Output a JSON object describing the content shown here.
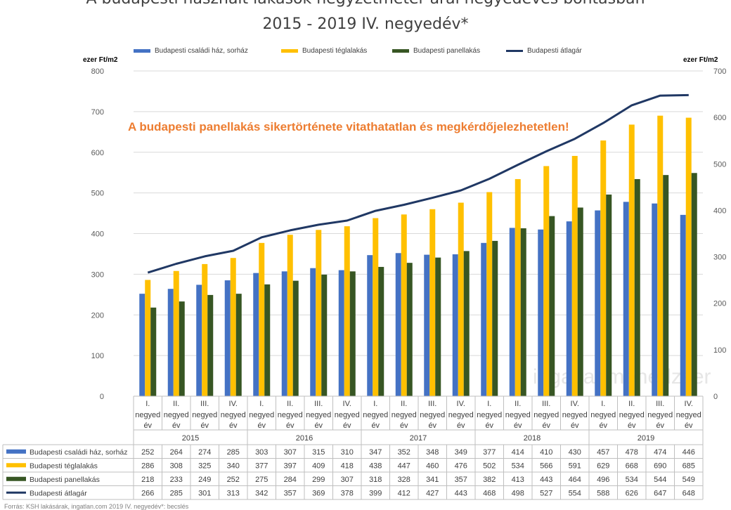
{
  "chart_data": {
    "type": "bar",
    "title_line1": "A budapesti használt lakások négyzetméter árai negyedéves bontásban",
    "title_line2": "2015 - 2019 IV. negyedév*",
    "ylabel_left": "ezer Ft/m2",
    "ylabel_right": "ezer Ft/m2",
    "ylim_left": [
      0,
      800
    ],
    "ylim_right": [
      0,
      700
    ],
    "yticks_left": [
      "0",
      "100",
      "200",
      "300",
      "400",
      "500",
      "600",
      "700",
      "800"
    ],
    "yticks_right": [
      "0",
      "100",
      "200",
      "300",
      "400",
      "500",
      "600",
      "700"
    ],
    "grid": true,
    "legend_position": "top",
    "annotation": "A budapesti panellakás sikertörténete vitathatatlan és megkérdőjelezhetetlen!",
    "watermark": "ingatlanmenedzser",
    "footnote": "Forrás: KSH lakásárak, ingatlan.com 2019 IV. negyedév*: becslés",
    "quarter_labels": [
      "I.",
      "II.",
      "III.",
      "IV."
    ],
    "negyed": "negyed",
    "ev": "év",
    "years": [
      "2015",
      "2016",
      "2017",
      "2018",
      "2019"
    ],
    "series": [
      {
        "name": "Budapesti családi ház, sorház",
        "color": "#4472c4",
        "kind": "bar",
        "axis": "left",
        "values": [
          252,
          264,
          274,
          285,
          303,
          307,
          315,
          310,
          347,
          352,
          348,
          349,
          377,
          414,
          410,
          430,
          457,
          478,
          474,
          446
        ]
      },
      {
        "name": "Budapesti téglalakás",
        "color": "#ffc000",
        "kind": "bar",
        "axis": "left",
        "values": [
          286,
          308,
          325,
          340,
          377,
          397,
          409,
          418,
          438,
          447,
          460,
          476,
          502,
          534,
          566,
          591,
          629,
          668,
          690,
          685
        ]
      },
      {
        "name": "Budapesti panellakás",
        "color": "#375623",
        "kind": "bar",
        "axis": "left",
        "values": [
          218,
          233,
          249,
          252,
          275,
          284,
          299,
          307,
          318,
          328,
          341,
          357,
          382,
          413,
          443,
          464,
          496,
          534,
          544,
          549
        ]
      },
      {
        "name": "Budapesti átlagár",
        "color": "#203864",
        "kind": "line",
        "axis": "right",
        "values": [
          266,
          285,
          301,
          313,
          342,
          357,
          369,
          378,
          399,
          412,
          427,
          443,
          468,
          498,
          527,
          554,
          588,
          626,
          647,
          648
        ]
      }
    ]
  }
}
